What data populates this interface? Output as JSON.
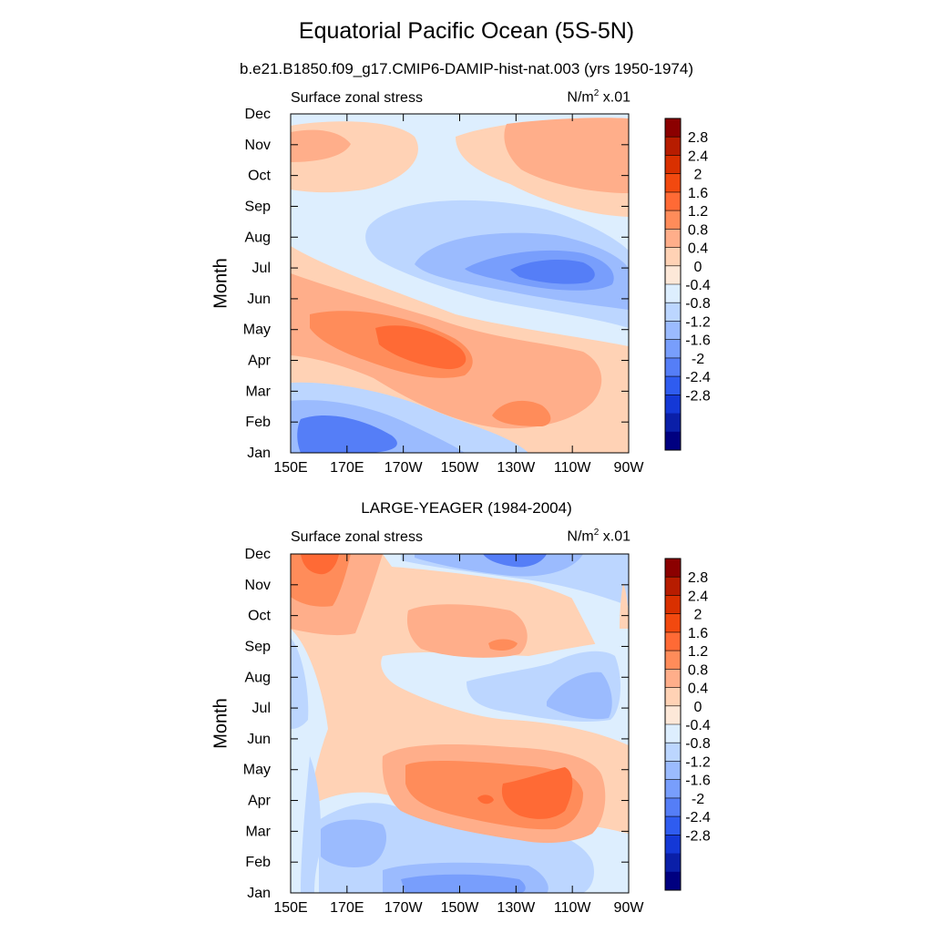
{
  "figure": {
    "title": "Equatorial Pacific Ocean (5S-5N)",
    "subtitle": "b.e21.B1850.f09_g17.CMIP6-DAMIP-hist-nat.003 (yrs 1950-1974)"
  },
  "chart_data": [
    {
      "type": "heatmap",
      "panel_title": "",
      "left_label": "Surface zonal stress",
      "right_label_base": "N/m",
      "right_label_sup": "2",
      "right_label_tail": " x.01",
      "ylabel": "Month",
      "x_ticks": [
        "150E",
        "170E",
        "170W",
        "150W",
        "130W",
        "110W",
        "90W"
      ],
      "y_ticks": [
        "Jan",
        "Feb",
        "Mar",
        "Apr",
        "May",
        "Jun",
        "Jul",
        "Aug",
        "Sep",
        "Oct",
        "Nov",
        "Dec"
      ],
      "colorbar_levels": [
        "2.8",
        "2.4",
        "2",
        "1.6",
        "1.2",
        "0.8",
        "0.4",
        "0",
        "-0.4",
        "-0.8",
        "-1.2",
        "-1.6",
        "-2",
        "-2.4",
        "-2.8"
      ],
      "colorbar_colors": [
        "#8b0000",
        "#b71c00",
        "#d93000",
        "#f2490f",
        "#ff6a35",
        "#ff8c5a",
        "#ffae8a",
        "#ffd2b5",
        "#fde8d8",
        "#ddeefe",
        "#bcd6ff",
        "#9bbbfe",
        "#789efc",
        "#557ef7",
        "#2f5cf0",
        "#1438d6",
        "#0a1fa8",
        "#000080"
      ],
      "grid": false
    },
    {
      "type": "heatmap",
      "panel_title": "LARGE-YEAGER (1984-2004)",
      "left_label": "Surface zonal stress",
      "right_label_base": "N/m",
      "right_label_sup": "2",
      "right_label_tail": " x.01",
      "ylabel": "Month",
      "x_ticks": [
        "150E",
        "170E",
        "170W",
        "150W",
        "130W",
        "110W",
        "90W"
      ],
      "y_ticks": [
        "Jan",
        "Feb",
        "Mar",
        "Apr",
        "May",
        "Jun",
        "Jul",
        "Aug",
        "Sep",
        "Oct",
        "Nov",
        "Dec"
      ],
      "colorbar_levels": [
        "2.8",
        "2.4",
        "2",
        "1.6",
        "1.2",
        "0.8",
        "0.4",
        "0",
        "-0.4",
        "-0.8",
        "-1.2",
        "-1.6",
        "-2",
        "-2.4",
        "-2.8"
      ],
      "colorbar_colors": [
        "#8b0000",
        "#b71c00",
        "#d93000",
        "#f2490f",
        "#ff6a35",
        "#ff8c5a",
        "#ffae8a",
        "#ffd2b5",
        "#fde8d8",
        "#ddeefe",
        "#bcd6ff",
        "#9bbbfe",
        "#789efc",
        "#557ef7",
        "#2f5cf0",
        "#1438d6",
        "#0a1fa8",
        "#000080"
      ],
      "grid": false
    }
  ]
}
